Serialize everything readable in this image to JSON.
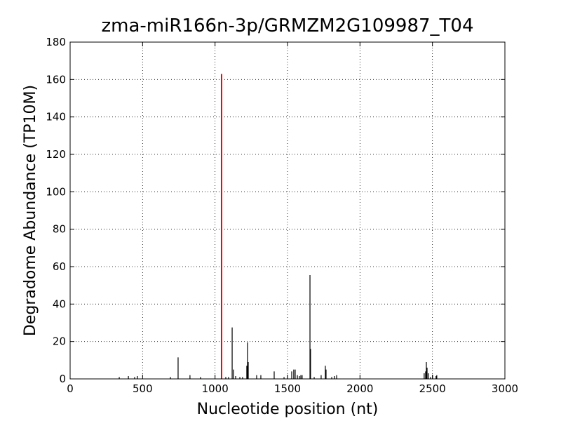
{
  "chart_data": {
    "type": "stem",
    "title": "zma-miR166n-3p/GRMZM2G109987_T04",
    "x_label": "Nucleotide position (nt)",
    "y_label": "Degradome Abundance (TP10M)",
    "xlim": [
      0,
      3000
    ],
    "ylim": [
      0,
      180
    ],
    "xticks": [
      0,
      500,
      1000,
      1500,
      2000,
      2500,
      3000
    ],
    "yticks": [
      0,
      20,
      40,
      60,
      80,
      100,
      120,
      140,
      160,
      180
    ],
    "grid": true,
    "series": [
      {
        "color": "#000000",
        "x": [
          339,
          402,
          445,
          464,
          692,
          745,
          827,
          900,
          1074,
          1093,
          1118,
          1127,
          1142,
          1171,
          1190,
          1219,
          1224,
          1229,
          1287,
          1316,
          1408,
          1476,
          1500,
          1529,
          1543,
          1553,
          1568,
          1582,
          1592,
          1601,
          1655,
          1659,
          1684,
          1732,
          1761,
          1766,
          1805,
          1824,
          1839,
          2443,
          2453,
          2458,
          2463,
          2472,
          2487,
          2501,
          2525,
          2530
        ],
        "values": [
          1,
          1.5,
          1,
          1.5,
          1,
          11.5,
          2,
          1,
          1,
          1,
          27.5,
          5,
          1.5,
          1,
          1,
          7,
          19.5,
          9,
          2,
          2,
          4,
          1,
          2,
          4,
          5,
          5,
          2,
          1.5,
          2,
          2,
          55.5,
          16,
          1,
          2,
          7,
          5,
          1,
          1.5,
          2,
          3,
          4,
          9,
          6,
          3,
          1,
          2,
          1.5,
          2
        ]
      },
      {
        "color": "#ff0000",
        "x": [
          1045
        ],
        "values": [
          163
        ]
      }
    ]
  }
}
